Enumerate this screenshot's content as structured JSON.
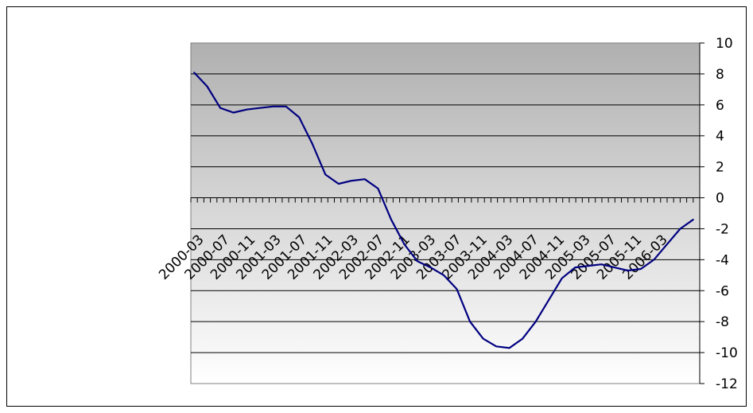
{
  "chart_data": {
    "type": "line",
    "title": "",
    "xlabel": "",
    "ylabel": "",
    "ylim": [
      -12,
      10
    ],
    "ytick_step": 2,
    "y_axis_side": "right",
    "grid": true,
    "legend": "none",
    "x_tick_labels": [
      "2000-03",
      "2000-07",
      "2000-11",
      "2001-03",
      "2001-07",
      "2001-11",
      "2002-03",
      "2002-07",
      "2002-11",
      "2003-03",
      "2003-07",
      "2003-11",
      "2004-03",
      "2004-07",
      "2004-11",
      "2005-03",
      "2005-07",
      "2005-11",
      "2006-03"
    ],
    "x": [
      "2000-03",
      "2000-05",
      "2000-07",
      "2000-09",
      "2000-11",
      "2001-01",
      "2001-03",
      "2001-05",
      "2001-07",
      "2001-09",
      "2001-11",
      "2002-01",
      "2002-03",
      "2002-05",
      "2002-07",
      "2002-09",
      "2002-11",
      "2003-01",
      "2003-03",
      "2003-05",
      "2003-07",
      "2003-09",
      "2003-11",
      "2004-01",
      "2004-03",
      "2004-05",
      "2004-07",
      "2004-09",
      "2004-11",
      "2005-01",
      "2005-03",
      "2005-05",
      "2005-07",
      "2005-09",
      "2005-11",
      "2006-01",
      "2006-03",
      "2006-05",
      "2006-07"
    ],
    "series": [
      {
        "values": [
          8.1,
          7.2,
          5.8,
          5.5,
          5.7,
          5.8,
          5.9,
          5.9,
          5.2,
          3.5,
          1.5,
          0.9,
          1.1,
          1.2,
          0.6,
          -1.4,
          -3.0,
          -4.1,
          -4.5,
          -5.0,
          -5.9,
          -8.0,
          -9.1,
          -9.6,
          -9.7,
          -9.1,
          -8.0,
          -6.6,
          -5.2,
          -4.5,
          -4.4,
          -4.3,
          -4.5,
          -4.7,
          -4.6,
          -4.0,
          -3.0,
          -2.0,
          -1.4
        ]
      }
    ],
    "colors": {
      "line": "#000080",
      "plot_gradient_top": "#b3b3b3",
      "plot_gradient_bottom": "#ffffff",
      "gridline": "#000000"
    }
  }
}
